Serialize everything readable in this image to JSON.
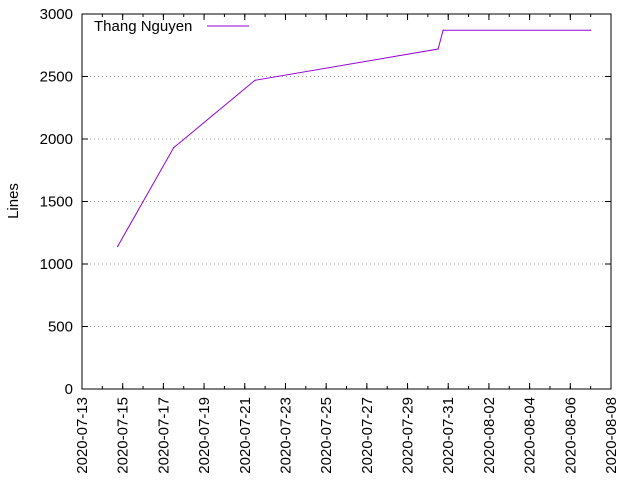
{
  "chart_data": {
    "type": "line",
    "title": "",
    "xlabel": "",
    "ylabel": "Lines",
    "x_ticks": [
      "2020-07-13",
      "2020-07-15",
      "2020-07-17",
      "2020-07-19",
      "2020-07-21",
      "2020-07-23",
      "2020-07-25",
      "2020-07-27",
      "2020-07-29",
      "2020-07-31",
      "2020-08-02",
      "2020-08-04",
      "2020-08-06",
      "2020-08-08"
    ],
    "y_ticks": [
      0,
      500,
      1000,
      1500,
      2000,
      2500,
      3000
    ],
    "xlim": [
      "2020-07-13",
      "2020-08-08"
    ],
    "ylim": [
      0,
      3000
    ],
    "grid": "horizontal dotted",
    "legend_position": "top-left",
    "series": [
      {
        "name": "Thang Nguyen",
        "color": "#9400d3",
        "points": [
          {
            "x": "2020-07-14 18:00",
            "y": 1140
          },
          {
            "x": "2020-07-17 12:00",
            "y": 1930
          },
          {
            "x": "2020-07-21 12:00",
            "y": 2470
          },
          {
            "x": "2020-07-30 12:00",
            "y": 2720
          },
          {
            "x": "2020-07-30 18:00",
            "y": 2870
          },
          {
            "x": "2020-08-07 00:00",
            "y": 2870
          }
        ]
      }
    ]
  }
}
